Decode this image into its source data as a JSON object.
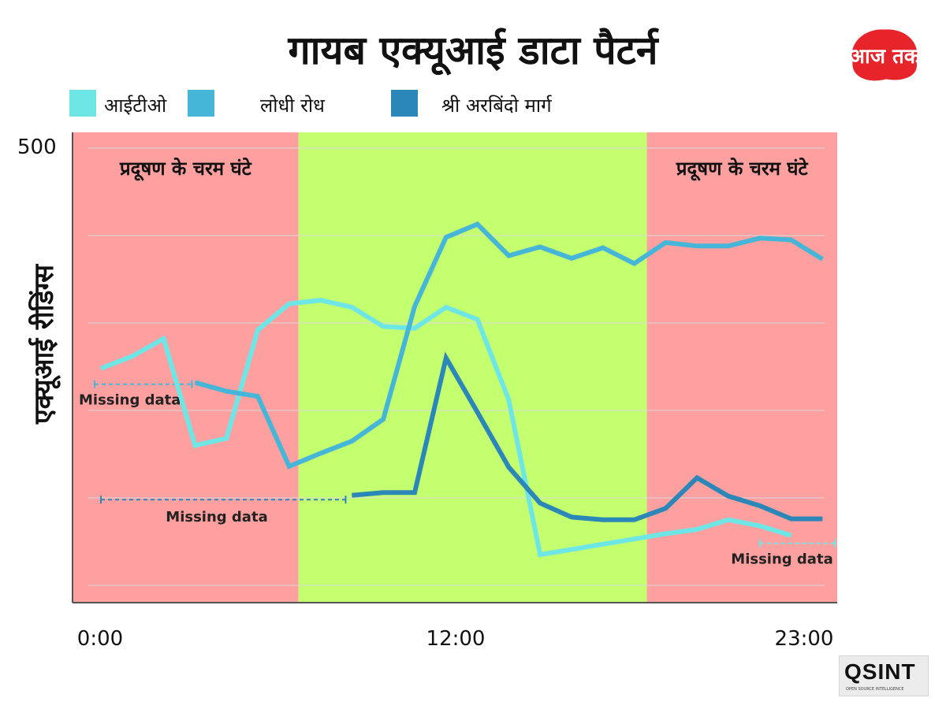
{
  "header": {
    "title": "गायब एक्यूआई डाटा पैटर्न",
    "logo_text": "आज तक"
  },
  "footer": {
    "logo_text": "QSINT",
    "logo_subtext": "OPEN SOURCE INTELLIGENCE"
  },
  "colors": {
    "peak_band": "#ffa0a0",
    "normal_band": "#c4ff70",
    "grid": "#d9d9d9",
    "axis": "#555555",
    "aajtak_red": "#e8242b"
  },
  "chart_data": {
    "type": "line",
    "title": "गायब एक्यूआई डाटा पैटर्न",
    "xlabel": "",
    "ylabel": "एक्यूआई रीडिंग्स",
    "x": [
      0,
      1,
      2,
      3,
      4,
      5,
      6,
      7,
      8,
      9,
      10,
      11,
      12,
      13,
      14,
      15,
      16,
      17,
      18,
      19,
      20,
      21,
      22,
      23
    ],
    "x_tick_labels": [
      "0:00",
      "12:00",
      "23:00"
    ],
    "x_tick_positions": [
      0,
      12,
      23
    ],
    "ylim": [
      0,
      500
    ],
    "y_tick_labels": [
      "500"
    ],
    "y_tick_positions": [
      500
    ],
    "grid": true,
    "legend_position": "top-left",
    "series": [
      {
        "name": "आईटीओ",
        "color": "#6ee6e6",
        "values": [
          248,
          262,
          282,
          160,
          168,
          292,
          322,
          326,
          318,
          296,
          294,
          318,
          304,
          212,
          35,
          41,
          47,
          53,
          59,
          64,
          75,
          68,
          57,
          null
        ]
      },
      {
        "name": "लोधी रोध",
        "color": "#46b6d8",
        "values": [
          null,
          null,
          null,
          232,
          222,
          216,
          136,
          151,
          165,
          190,
          319,
          398,
          413,
          377,
          387,
          374,
          386,
          368,
          392,
          388,
          388,
          397,
          395,
          373
        ]
      },
      {
        "name": "श्री अरबिंदो मार्ग",
        "color": "#2a87b8",
        "values": [
          null,
          null,
          null,
          null,
          null,
          null,
          null,
          null,
          103,
          106,
          106,
          260,
          198,
          135,
          94,
          78,
          75,
          75,
          88,
          123,
          102,
          91,
          76,
          76
        ]
      }
    ],
    "bands": [
      {
        "from": -1,
        "to": 6.3,
        "label": "प्रदूषण के चरम घंटे",
        "kind": "peak"
      },
      {
        "from": 6.3,
        "to": 17.4,
        "label": "",
        "kind": "normal"
      },
      {
        "from": 17.4,
        "to": 23.8,
        "label": "प्रदूषण के चरम घंटे",
        "kind": "peak"
      }
    ],
    "annotations": [
      {
        "text": "Missing data",
        "from": -0.2,
        "to": 2.9,
        "y": 230,
        "color": "#46b6d8"
      },
      {
        "text": "Missing data",
        "from": 0,
        "to": 7.8,
        "y": 98,
        "color": "#2a87b8"
      },
      {
        "text": "Missing data",
        "from": 21,
        "to": 23.4,
        "y": 48,
        "color": "#6ee6e6"
      }
    ]
  }
}
